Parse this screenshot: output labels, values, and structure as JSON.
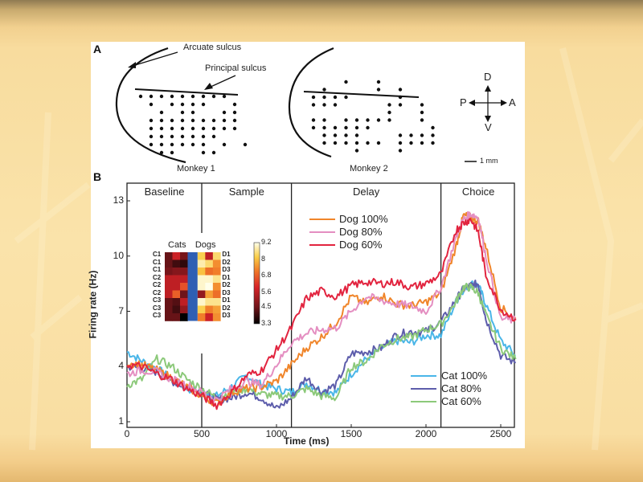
{
  "slide": {
    "background_colors": [
      "#8f7a52",
      "#f8dc9e",
      "#e4b86f"
    ]
  },
  "panel_a": {
    "letter": "A",
    "arcuate_label": "Arcuate sulcus",
    "principal_label": "Principal sulcus",
    "monkey1_label": "Monkey 1",
    "monkey2_label": "Monkey 2",
    "compass": {
      "up": "D",
      "down": "V",
      "left": "P",
      "right": "A"
    },
    "scale_label": "1 mm",
    "monkey1_grid": [
      [
        1,
        1,
        1,
        1,
        1,
        1,
        1,
        1,
        1,
        0
      ],
      [
        0,
        1,
        0,
        1,
        1,
        1,
        1,
        0,
        0,
        1
      ],
      [
        0,
        0,
        1,
        0,
        1,
        1,
        0,
        0,
        1,
        1
      ],
      [
        0,
        1,
        1,
        1,
        1,
        1,
        1,
        1,
        1,
        1
      ],
      [
        0,
        1,
        1,
        1,
        1,
        1,
        1,
        1,
        1,
        1
      ],
      [
        0,
        1,
        1,
        1,
        1,
        1,
        1,
        1,
        0,
        0
      ],
      [
        0,
        1,
        1,
        1,
        1,
        1,
        1,
        0,
        1,
        0,
        1
      ],
      [
        0,
        0,
        1,
        1,
        0,
        0,
        1,
        1,
        0,
        0
      ]
    ],
    "monkey2_grid": [
      [
        0,
        0,
        0,
        1,
        0,
        0,
        1,
        0,
        0,
        0,
        0
      ],
      [
        0,
        1,
        0,
        0,
        0,
        0,
        1,
        0,
        1,
        0,
        0
      ],
      [
        1,
        1,
        1,
        1,
        0,
        0,
        0,
        0,
        1,
        0,
        0
      ],
      [
        1,
        1,
        1,
        0,
        0,
        0,
        0,
        1,
        1,
        0,
        1
      ],
      [
        0,
        0,
        0,
        0,
        0,
        0,
        0,
        1,
        0,
        0,
        1
      ],
      [
        1,
        1,
        0,
        1,
        1,
        1,
        1,
        1,
        0,
        0,
        1
      ],
      [
        1,
        1,
        1,
        1,
        1,
        1,
        0,
        0,
        0,
        0,
        0,
        1
      ],
      [
        0,
        1,
        1,
        1,
        1,
        0,
        0,
        0,
        1,
        1,
        1,
        1
      ],
      [
        0,
        1,
        1,
        1,
        1,
        1,
        1,
        0,
        1,
        1,
        1,
        1
      ],
      [
        0,
        0,
        0,
        0,
        1,
        0,
        0,
        0,
        1,
        0,
        0,
        0
      ]
    ]
  },
  "panel_b": {
    "letter": "B",
    "epochs": [
      {
        "label": "Baseline",
        "start": 0,
        "end": 500
      },
      {
        "label": "Sample",
        "start": 500,
        "end": 1100
      },
      {
        "label": "Delay",
        "start": 1100,
        "end": 2100
      },
      {
        "label": "Choice",
        "start": 2100,
        "end": 2600
      }
    ],
    "inset": {
      "cats_label": "Cats",
      "dogs_label": "Dogs",
      "row_labels_left": [
        "C1",
        "C1",
        "C1",
        "C2",
        "C2",
        "C2",
        "C3",
        "C3",
        "C3"
      ],
      "row_labels_right": [
        "D1",
        "D2",
        "D3",
        "D1",
        "D2",
        "D3",
        "D1",
        "D2",
        "D3"
      ],
      "colorbar_ticks": [
        "9.2",
        "8",
        "6.8",
        "5.6",
        "4.5",
        "3.3"
      ],
      "cats_values": [
        [
          4.4,
          5.8,
          4.6
        ],
        [
          4.4,
          4.0,
          3.8
        ],
        [
          4.6,
          4.8,
          4.8
        ],
        [
          5.6,
          5.6,
          5.6
        ],
        [
          5.6,
          5.6,
          6.6
        ],
        [
          5.6,
          6.8,
          4.5
        ],
        [
          4.4,
          4.2,
          5.6
        ],
        [
          4.4,
          4.0,
          5.0
        ],
        [
          4.4,
          4.4,
          3.3
        ]
      ],
      "dogs_values": [
        [
          8.2,
          5.6,
          8.4
        ],
        [
          8.8,
          8.4,
          7.4
        ],
        [
          8.0,
          7.0,
          7.2
        ],
        [
          9.0,
          9.0,
          8.6
        ],
        [
          9.0,
          9.2,
          7.4
        ],
        [
          5.0,
          7.6,
          7.0
        ],
        [
          9.0,
          8.6,
          8.6
        ],
        [
          8.2,
          7.2,
          7.6
        ],
        [
          7.2,
          5.8,
          7.4
        ]
      ],
      "divider_color": "#2f5fb3"
    }
  },
  "chart_data": {
    "type": "line",
    "title": "",
    "xlabel": "Time (ms)",
    "ylabel": "Firing rate (Hz)",
    "xlim": [
      0,
      2600
    ],
    "ylim": [
      1,
      14
    ],
    "xticks": [
      0,
      500,
      1000,
      1500,
      2000,
      2500
    ],
    "yticks": [
      1,
      4,
      7,
      10,
      13
    ],
    "grid": false,
    "legend": [
      {
        "position": "top-middle",
        "entries": [
          "Dog 100%",
          "Dog 80%",
          "Dog 60%"
        ]
      },
      {
        "position": "bottom-right",
        "entries": [
          "Cat 100%",
          "Cat 80%",
          "Cat 60%"
        ]
      }
    ],
    "x": [
      0,
      100,
      200,
      300,
      400,
      500,
      600,
      700,
      800,
      900,
      1000,
      1100,
      1200,
      1300,
      1400,
      1500,
      1600,
      1700,
      1800,
      1900,
      2000,
      2100,
      2200,
      2250,
      2300,
      2350,
      2400,
      2500,
      2600
    ],
    "series": [
      {
        "name": "Dog 100%",
        "color": "#f0852a",
        "values": [
          4.2,
          4.1,
          3.8,
          3.4,
          2.9,
          2.4,
          2.0,
          2.6,
          2.8,
          2.9,
          3.2,
          4.1,
          5.0,
          5.6,
          6.4,
          7.8,
          7.4,
          7.9,
          7.4,
          7.3,
          7.5,
          8.0,
          10.5,
          12.2,
          12.1,
          11.9,
          10.5,
          7.2,
          6.6
        ]
      },
      {
        "name": "Dog 80%",
        "color": "#e48ec1",
        "values": [
          3.6,
          3.8,
          3.7,
          3.3,
          3.0,
          2.6,
          2.2,
          2.8,
          3.2,
          3.0,
          4.1,
          5.3,
          5.8,
          6.0,
          6.1,
          7.0,
          7.8,
          7.6,
          7.4,
          7.3,
          7.0,
          8.3,
          11.0,
          12.0,
          12.3,
          12.1,
          10.0,
          6.6,
          6.5
        ]
      },
      {
        "name": "Dog 60%",
        "color": "#e2243f",
        "values": [
          4.1,
          4.0,
          3.6,
          3.3,
          2.8,
          2.4,
          1.9,
          2.6,
          3.5,
          3.8,
          4.9,
          6.1,
          7.7,
          8.1,
          7.8,
          8.4,
          8.6,
          8.5,
          8.6,
          8.3,
          8.5,
          9.0,
          11.4,
          11.8,
          12.0,
          11.3,
          9.0,
          7.1,
          6.6
        ]
      },
      {
        "name": "Cat 100%",
        "color": "#4ab6e8",
        "values": [
          4.8,
          4.3,
          3.9,
          3.3,
          2.8,
          2.6,
          2.4,
          2.9,
          3.5,
          3.0,
          2.8,
          2.6,
          3.1,
          2.7,
          2.6,
          3.6,
          4.4,
          5.0,
          5.4,
          5.3,
          5.7,
          5.7,
          7.5,
          8.2,
          8.5,
          8.4,
          7.4,
          5.4,
          4.6
        ]
      },
      {
        "name": "Cat 80%",
        "color": "#5d5dab",
        "values": [
          4.0,
          3.9,
          3.7,
          3.2,
          2.9,
          2.6,
          2.2,
          2.3,
          2.6,
          2.3,
          1.7,
          2.3,
          3.4,
          2.6,
          3.0,
          4.7,
          4.8,
          5.0,
          5.7,
          5.9,
          5.9,
          6.4,
          7.6,
          8.2,
          8.4,
          8.5,
          6.6,
          4.6,
          4.2
        ]
      },
      {
        "name": "Cat 60%",
        "color": "#8cc97a",
        "values": [
          3.0,
          3.3,
          4.4,
          4.0,
          3.3,
          2.8,
          2.3,
          2.6,
          2.8,
          2.5,
          2.4,
          2.4,
          2.8,
          2.4,
          2.3,
          4.0,
          4.3,
          5.1,
          5.5,
          5.6,
          6.0,
          6.3,
          7.5,
          8.3,
          8.3,
          8.0,
          6.8,
          5.0,
          4.4
        ]
      }
    ]
  }
}
